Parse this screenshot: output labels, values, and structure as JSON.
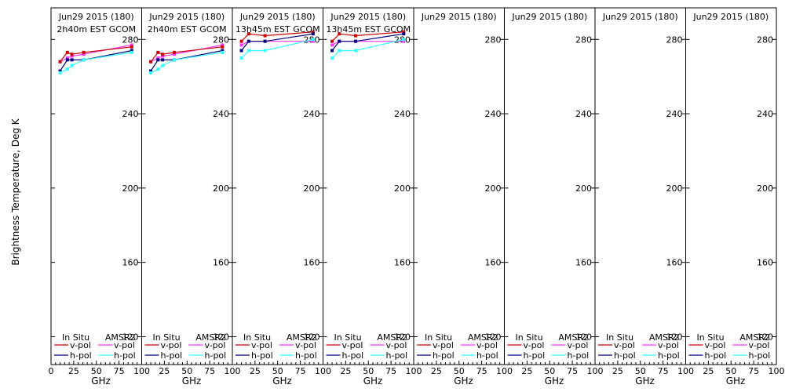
{
  "chart_data": {
    "type": "line",
    "ylabel": "Brightness Temperature, Deg K",
    "xlabel": "GHz",
    "xlim": [
      0,
      100
    ],
    "ylim": [
      105,
      297
    ],
    "xticks": [
      0,
      25,
      50,
      75,
      100
    ],
    "yticks": [
      120,
      160,
      200,
      240,
      280
    ],
    "legend": {
      "in_situ": "In Situ",
      "amsr2": "AMSR2",
      "vpol": "v-pol",
      "hpol": "h-pol"
    },
    "colors": {
      "insitu_v": "#cc0000",
      "insitu_h": "#000080",
      "amsr2_v": "#ff33ff",
      "amsr2_h": "#33ffff"
    },
    "panels": [
      {
        "title": "Jun29 2015 (180)",
        "subtitle": "2h40m EST GCOM",
        "series": [
          {
            "key": "amsr2_v",
            "x": [
              10,
              18,
              23,
              36,
              89
            ],
            "y": [
              268,
              270,
              271,
              272,
              277
            ]
          },
          {
            "key": "insitu_v",
            "x": [
              10,
              18,
              23,
              36,
              89
            ],
            "y": [
              268,
              273,
              272,
              273,
              276
            ]
          },
          {
            "key": "insitu_h",
            "x": [
              10,
              18,
              23,
              36,
              89
            ],
            "y": [
              263,
              269,
              269,
              269,
              274
            ]
          },
          {
            "key": "amsr2_h",
            "x": [
              10,
              18,
              23,
              36,
              89
            ],
            "y": [
              262,
              264,
              266,
              269,
              273
            ]
          }
        ]
      },
      {
        "title": "Jun29 2015 (180)",
        "subtitle": "2h40m EST GCOM",
        "series": [
          {
            "key": "amsr2_v",
            "x": [
              10,
              18,
              23,
              36,
              89
            ],
            "y": [
              268,
              270,
              271,
              272,
              277
            ]
          },
          {
            "key": "insitu_v",
            "x": [
              10,
              18,
              23,
              36,
              89
            ],
            "y": [
              268,
              273,
              272,
              273,
              276
            ]
          },
          {
            "key": "insitu_h",
            "x": [
              10,
              18,
              23,
              36,
              89
            ],
            "y": [
              263,
              269,
              269,
              269,
              274
            ]
          },
          {
            "key": "amsr2_h",
            "x": [
              10,
              18,
              23,
              36,
              89
            ],
            "y": [
              262,
              264,
              266,
              269,
              273
            ]
          }
        ]
      },
      {
        "title": "Jun29 2015 (180)",
        "subtitle": "13h45m EST GCOM",
        "series": [
          {
            "key": "insitu_v",
            "x": [
              10,
              18,
              36,
              89
            ],
            "y": [
              279,
              283,
              282,
              284
            ]
          },
          {
            "key": "amsr2_v",
            "x": [
              10,
              18,
              36,
              89
            ],
            "y": [
              277,
              279,
              279,
              279
            ]
          },
          {
            "key": "insitu_h",
            "x": [
              10,
              18,
              36,
              89
            ],
            "y": [
              274,
              279,
              279,
              283
            ]
          },
          {
            "key": "amsr2_h",
            "x": [
              10,
              18,
              36,
              89
            ],
            "y": [
              270,
              274,
              274,
              280
            ]
          }
        ]
      },
      {
        "title": "Jun29 2015 (180)",
        "subtitle": "13h45m EST GCOM",
        "series": [
          {
            "key": "insitu_v",
            "x": [
              10,
              18,
              36,
              89
            ],
            "y": [
              279,
              283,
              282,
              284
            ]
          },
          {
            "key": "amsr2_v",
            "x": [
              10,
              18,
              36,
              89
            ],
            "y": [
              277,
              279,
              279,
              279
            ]
          },
          {
            "key": "insitu_h",
            "x": [
              10,
              18,
              36,
              89
            ],
            "y": [
              274,
              279,
              279,
              283
            ]
          },
          {
            "key": "amsr2_h",
            "x": [
              10,
              18,
              36,
              89
            ],
            "y": [
              270,
              274,
              274,
              280
            ]
          }
        ]
      },
      {
        "title": "Jun29 2015 (180)",
        "subtitle": "",
        "series": []
      },
      {
        "title": "Jun29 2015 (180)",
        "subtitle": "",
        "series": []
      },
      {
        "title": "Jun29 2015 (180)",
        "subtitle": "",
        "series": []
      },
      {
        "title": "Jun29 2015 (180)",
        "subtitle": "",
        "series": []
      }
    ]
  }
}
